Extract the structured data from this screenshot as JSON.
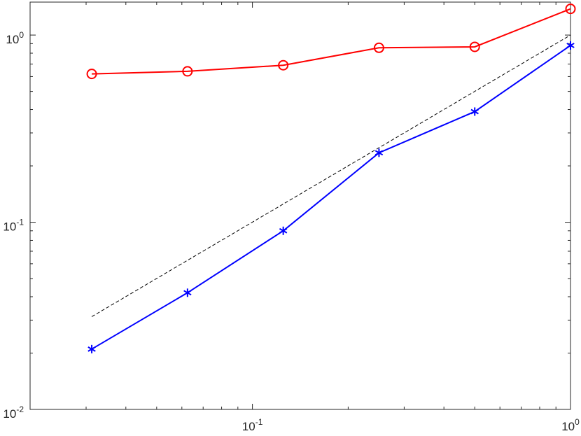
{
  "chart_data": {
    "type": "line",
    "title": "",
    "xlabel": "",
    "ylabel": "",
    "xscale": "log",
    "yscale": "log",
    "xlim": [
      0.02,
      1
    ],
    "ylim": [
      0.01,
      1.5
    ],
    "x": [
      0.03125,
      0.0625,
      0.125,
      0.25,
      0.5,
      1
    ],
    "series": [
      {
        "color": "#ff0000",
        "marker": "circle",
        "style": "solid",
        "values": [
          0.62,
          0.64,
          0.69,
          0.855,
          0.865,
          1.38
        ]
      },
      {
        "color": "#0000ff",
        "marker": "asterisk",
        "style": "solid",
        "values": [
          0.021,
          0.042,
          0.09,
          0.235,
          0.39,
          0.88
        ]
      },
      {
        "color": "#000000",
        "marker": "none",
        "style": "dashed",
        "values": [
          0.0313,
          null,
          null,
          null,
          null,
          1.0
        ]
      }
    ],
    "x_ticks": [
      {
        "value": 0.1,
        "base": "10",
        "exp": "-1"
      },
      {
        "value": 1,
        "base": "10",
        "exp": "0"
      }
    ],
    "y_ticks": [
      {
        "value": 0.01,
        "base": "10",
        "exp": "-2"
      },
      {
        "value": 0.1,
        "base": "10",
        "exp": "-1"
      },
      {
        "value": 1,
        "base": "10",
        "exp": "0"
      }
    ],
    "grid": false,
    "legend": "none"
  }
}
